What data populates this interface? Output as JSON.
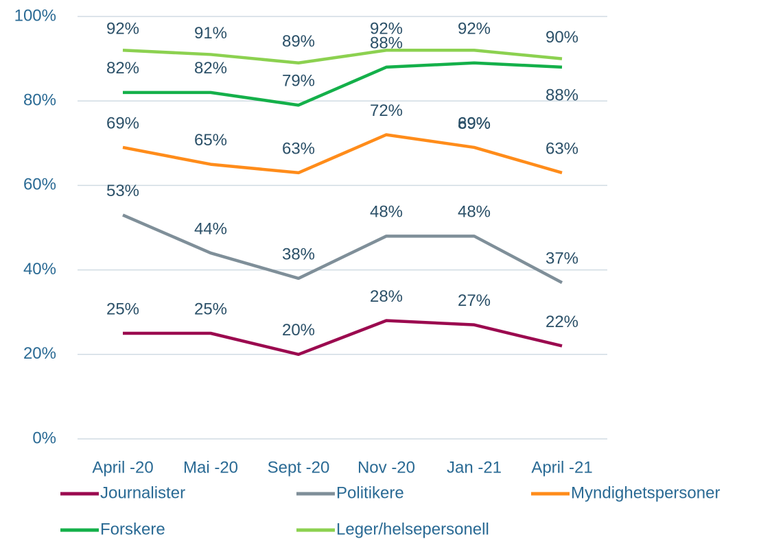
{
  "chart_data": {
    "type": "line",
    "categories": [
      "April -20",
      "Mai -20",
      "Sept -20",
      "Nov -20",
      "Jan -21",
      "April -21"
    ],
    "ylim": [
      0,
      100
    ],
    "yticks": [
      {
        "value": 0,
        "label": "0%"
      },
      {
        "value": 20,
        "label": "20%"
      },
      {
        "value": 40,
        "label": "40%"
      },
      {
        "value": 60,
        "label": "60%"
      },
      {
        "value": 80,
        "label": "80%"
      },
      {
        "value": 100,
        "label": "100%"
      }
    ],
    "grid": true,
    "legend": "bottom",
    "series": [
      {
        "name": "Journalister",
        "color": "#9b0a4f",
        "values": [
          25,
          25,
          20,
          28,
          27,
          22
        ],
        "value_labels": [
          "25%",
          "25%",
          "20%",
          "28%",
          "27%",
          "22%"
        ]
      },
      {
        "name": "Politikere",
        "color": "#7f8f99",
        "values": [
          53,
          44,
          38,
          48,
          48,
          37
        ],
        "value_labels": [
          "53%",
          "44%",
          "38%",
          "48%",
          "48%",
          "37%"
        ]
      },
      {
        "name": "Myndighetspersoner",
        "color": "#ff8c1a",
        "values": [
          69,
          65,
          63,
          72,
          69,
          63
        ],
        "value_labels": [
          "69%",
          "65%",
          "63%",
          "72%",
          "69%",
          "63%"
        ]
      },
      {
        "name": "Forskere",
        "color": "#14b04a",
        "values": [
          82,
          82,
          79,
          88,
          89,
          88
        ],
        "value_labels": [
          "82%",
          "82%",
          "79%",
          "88%",
          "89%",
          "88%"
        ]
      },
      {
        "name": "Leger/helsepersonell",
        "color": "#8cd150",
        "values": [
          92,
          91,
          89,
          92,
          92,
          90
        ],
        "value_labels": [
          "92%",
          "91%",
          "89%",
          "92%",
          "92%",
          "90%"
        ]
      }
    ]
  }
}
